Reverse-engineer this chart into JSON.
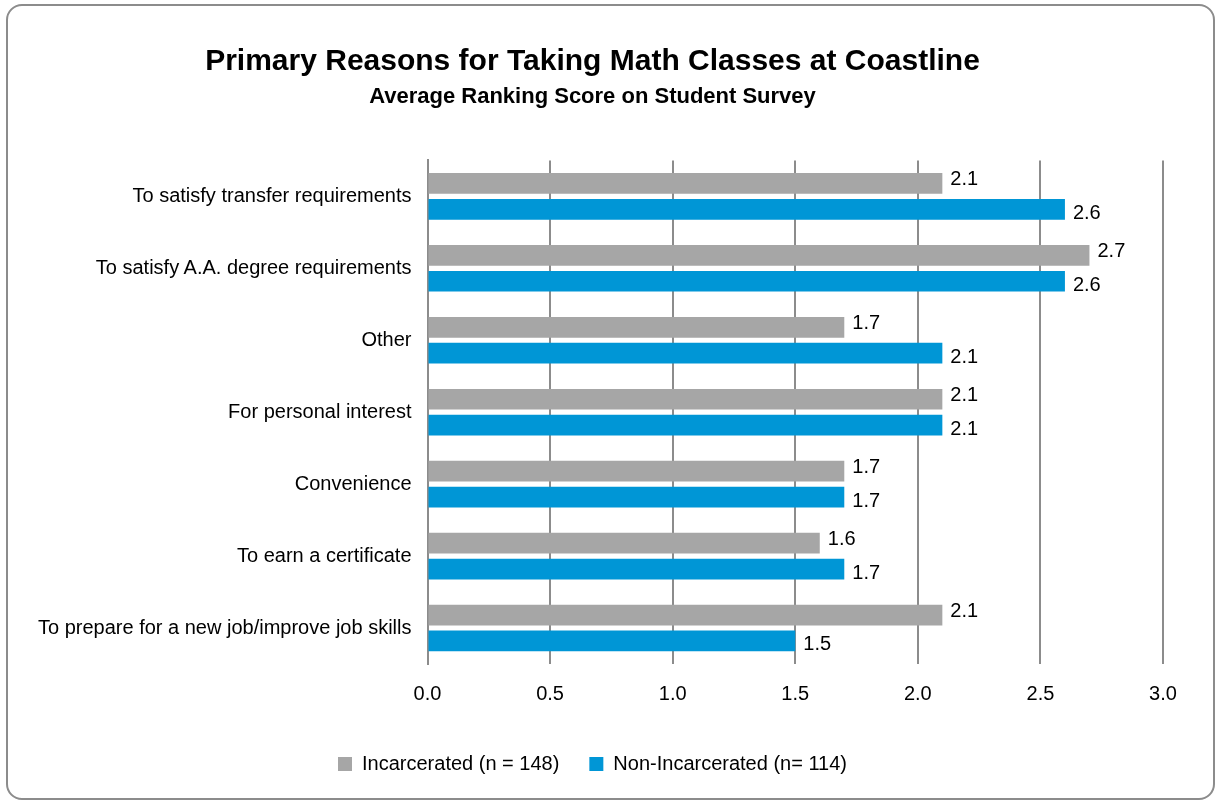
{
  "chart_data": {
    "type": "bar",
    "orientation": "horizontal",
    "title": "Primary Reasons for Taking Math Classes at Coastline",
    "subtitle": "Average Ranking Score on Student Survey",
    "categories": [
      "To satisfy transfer requirements",
      "To satisfy A.A. degree requirements",
      "Other",
      "For personal interest",
      "Convenience",
      "To earn a certificate",
      "To prepare for a new job/improve job skills"
    ],
    "series": [
      {
        "name": "Incarcerated (n = 148)",
        "color": "#a6a6a6",
        "values": [
          2.1,
          2.7,
          1.7,
          2.1,
          1.7,
          1.6,
          2.1
        ]
      },
      {
        "name": "Non-Incarcerated (n= 114)",
        "color": "#0096d6",
        "values": [
          2.6,
          2.6,
          2.1,
          2.1,
          1.7,
          1.7,
          1.5
        ]
      }
    ],
    "xlim": [
      0,
      3
    ],
    "xticks": [
      {
        "value": 0,
        "label": "0.0"
      },
      {
        "value": 0.5,
        "label": "0.5"
      },
      {
        "value": 1,
        "label": "1.0"
      },
      {
        "value": 1.5,
        "label": "1.5"
      },
      {
        "value": 2,
        "label": "2.0"
      },
      {
        "value": 2.5,
        "label": "2.5"
      },
      {
        "value": 3,
        "label": "3.0"
      }
    ],
    "grid": "x",
    "legend": "bottom",
    "data_labels": true
  }
}
